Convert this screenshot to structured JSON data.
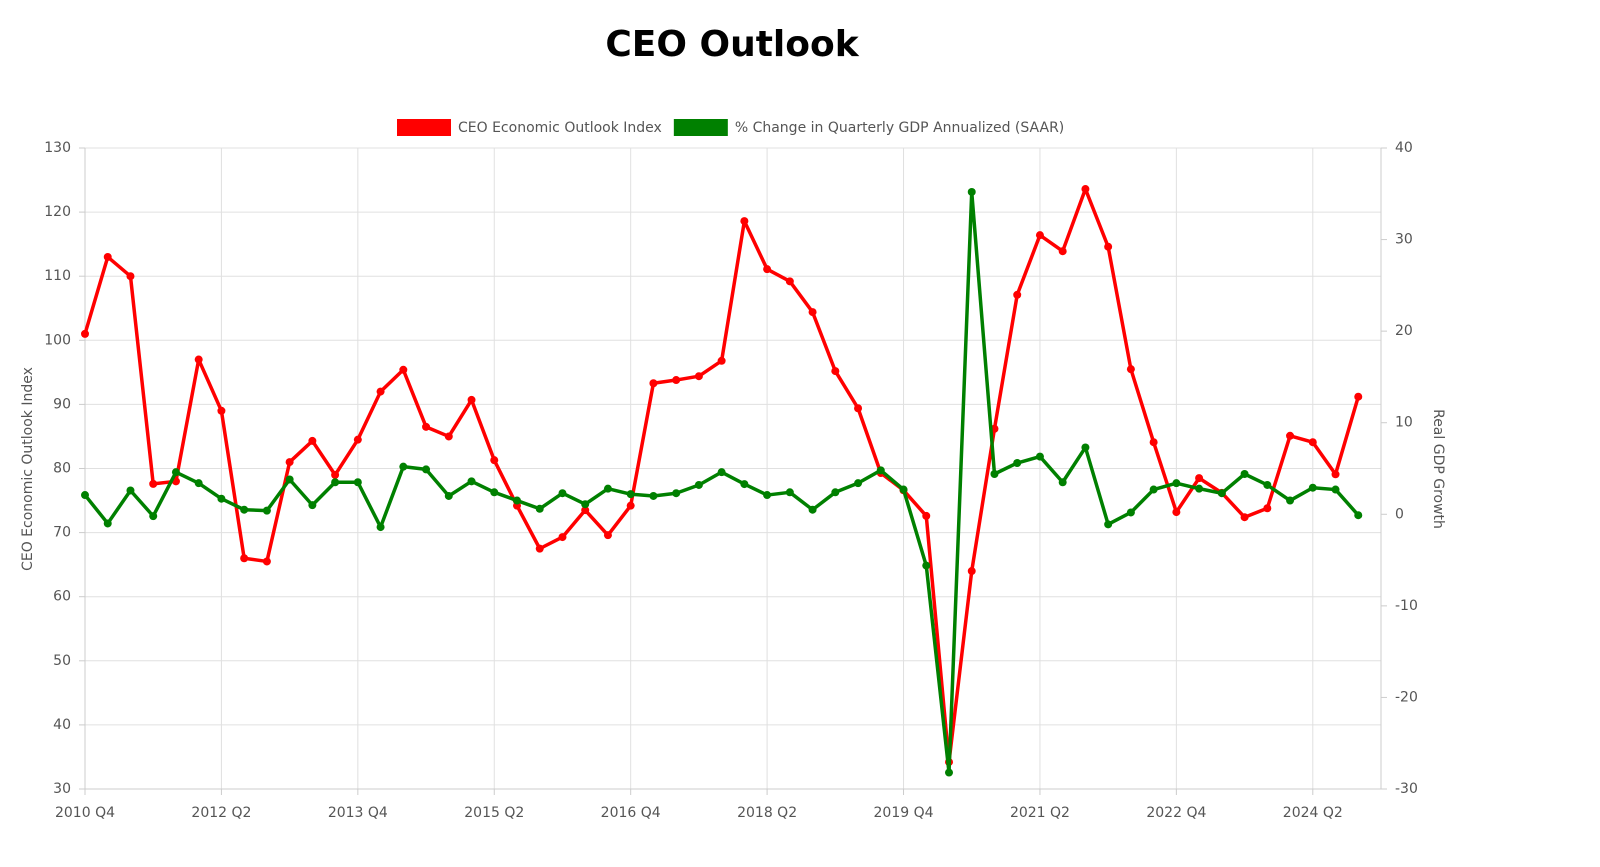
{
  "chart_data": {
    "type": "line",
    "title": "CEO Outlook",
    "ylabel": "CEO Economic Outlook Index",
    "y2label": "Real GDP Growth",
    "categories": [
      "2010 Q4",
      null,
      null,
      null,
      null,
      null,
      "2012 Q2",
      null,
      null,
      null,
      null,
      null,
      "2013 Q4",
      null,
      null,
      null,
      null,
      null,
      "2015 Q2",
      null,
      null,
      null,
      null,
      null,
      "2016 Q4",
      null,
      null,
      null,
      null,
      null,
      "2018 Q2",
      null,
      null,
      null,
      null,
      null,
      "2019 Q4",
      null,
      null,
      null,
      null,
      null,
      "2021 Q2",
      null,
      null,
      null,
      null,
      null,
      "2022 Q4",
      null,
      null,
      null,
      null,
      null,
      "2024 Q2",
      null,
      null
    ],
    "series": [
      {
        "name": "CEO Economic Outlook Index",
        "color": "#ff0000",
        "axis": "y",
        "values": [
          101,
          113,
          110,
          77.6,
          78,
          97,
          89,
          66,
          65.5,
          81,
          84.3,
          79,
          84.5,
          92,
          95.4,
          86.5,
          85,
          90.7,
          81.3,
          74.2,
          67.5,
          69.3,
          73.5,
          69.6,
          74.2,
          93.3,
          93.8,
          94.4,
          96.8,
          118.6,
          111.1,
          109.2,
          104.4,
          95.2,
          89.4,
          79.3,
          76.6,
          72.6,
          34.2,
          64,
          86.2,
          107.1,
          116.4,
          113.9,
          123.6,
          114.6,
          95.5,
          84.1,
          73.2,
          78.5,
          76.2,
          72.4,
          73.8,
          85.1,
          84.1,
          79.1,
          91.2
        ]
      },
      {
        "name": "% Change in Quarterly GDP Annualized (SAAR)",
        "color": "#008000",
        "axis": "y2",
        "values": [
          2.1,
          -1,
          2.6,
          -0.2,
          4.6,
          3.4,
          1.7,
          0.5,
          0.4,
          3.8,
          1,
          3.5,
          3.5,
          -1.4,
          5.2,
          4.9,
          2,
          3.6,
          2.4,
          1.5,
          0.6,
          2.3,
          1.1,
          2.8,
          2.2,
          2,
          2.3,
          3.2,
          4.6,
          3.3,
          2.1,
          2.4,
          0.5,
          2.4,
          3.4,
          4.8,
          2.7,
          -5.6,
          -28.2,
          35.2,
          4.4,
          5.6,
          6.3,
          3.5,
          7.3,
          -1.1,
          0.2,
          2.7,
          3.4,
          2.8,
          2.3,
          4.4,
          3.2,
          1.5,
          2.9,
          2.7,
          -0.1
        ]
      }
    ],
    "ylim": [
      30,
      130
    ],
    "yticks": [
      30,
      40,
      50,
      60,
      70,
      80,
      90,
      100,
      110,
      120,
      130
    ],
    "y2lim": [
      -30,
      40
    ],
    "y2ticks": [
      -30,
      -20,
      -10,
      0,
      10,
      20,
      30,
      40
    ],
    "grid": true,
    "legend": "top"
  }
}
